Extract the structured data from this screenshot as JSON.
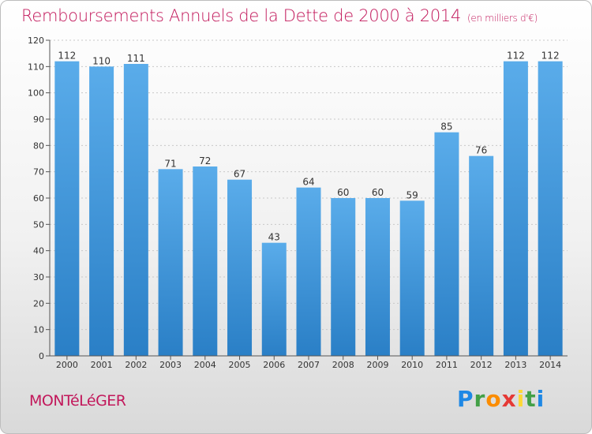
{
  "title": "Remboursements Annuels de la Dette de 2000 à 2014",
  "subtitle": "(en milliers d'€)",
  "place": "MONTéLéGER",
  "logo": "Proxiti",
  "colors": {
    "accent": "#c2185b",
    "bar": "#3d97dc"
  },
  "chart_data": {
    "type": "bar",
    "title": "Remboursements Annuels de la Dette de 2000 à 2014",
    "subtitle": "(en milliers d'€)",
    "categories": [
      "2000",
      "2001",
      "2002",
      "2003",
      "2004",
      "2005",
      "2006",
      "2007",
      "2008",
      "2009",
      "2010",
      "2011",
      "2012",
      "2013",
      "2014"
    ],
    "values": [
      112,
      110,
      111,
      71,
      72,
      67,
      43,
      64,
      60,
      60,
      59,
      85,
      76,
      112,
      112
    ],
    "ylim": [
      0,
      120
    ],
    "yticks": [
      0,
      10,
      20,
      30,
      40,
      50,
      60,
      70,
      80,
      90,
      100,
      110,
      120
    ],
    "grid": true,
    "xlabel": "",
    "ylabel": ""
  }
}
